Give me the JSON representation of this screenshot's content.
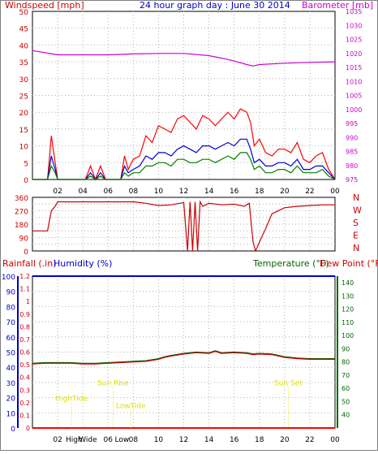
{
  "header": {
    "left_label": "Windspeed [mph]",
    "title": "24 hour graph day : June 30 2014",
    "right_label": "Barometer [mb]"
  },
  "colors": {
    "wind_gust": "#ff0000",
    "wind_avg": "#0000cc",
    "wind_speed": "#008000",
    "barometer": "#cc00cc",
    "direction": "#cc0000",
    "rain_axis": "#cc0000",
    "humidity": "#0000cc",
    "temperature": "#006400",
    "dewpoint": "#cc0000",
    "temp_axis": "#006400",
    "annotation": "#e0e000"
  },
  "x_ticks": [
    "02",
    "04",
    "06",
    "08",
    "10",
    "12",
    "14",
    "16",
    "18",
    "20",
    "22",
    "00"
  ],
  "bottom_x_ticks": [
    "02",
    "High",
    "Wide",
    "06",
    "Low",
    "08",
    "10",
    "12",
    "14",
    "16",
    "18",
    "20",
    "22",
    "00"
  ],
  "chart_data": [
    {
      "type": "line",
      "name": "wind-panel",
      "series": [
        {
          "name": "gust",
          "color": "#ff0000",
          "x": [
            0,
            1.2,
            1.5,
            1.8,
            2,
            3,
            4,
            4.2,
            4.6,
            5,
            5.4,
            5.8,
            6,
            7,
            7.3,
            7.6,
            8,
            8.5,
            9,
            9.5,
            10,
            10.5,
            11,
            11.5,
            12,
            12.5,
            13,
            13.5,
            14,
            14.5,
            15,
            15.5,
            16,
            16.5,
            17,
            17.3,
            17.6,
            18,
            18.5,
            19,
            19.5,
            20,
            20.5,
            21,
            21.5,
            22,
            22.5,
            23,
            23.5,
            24
          ],
          "y": [
            0,
            0,
            13,
            5,
            0,
            0,
            0,
            0,
            4,
            0,
            4,
            0,
            0,
            0,
            7,
            3,
            6,
            7,
            13,
            11,
            16,
            15,
            14,
            18,
            19,
            17,
            15,
            19,
            18,
            16,
            18,
            20,
            18,
            21,
            20,
            17,
            10,
            12,
            8,
            7,
            9,
            9,
            8,
            11,
            6,
            5,
            7,
            8,
            3,
            0
          ]
        },
        {
          "name": "average",
          "color": "#0000cc",
          "x": [
            0,
            1.2,
            1.5,
            1.8,
            2,
            3,
            4,
            4.2,
            4.6,
            5,
            5.4,
            5.8,
            6,
            7,
            7.3,
            7.6,
            8,
            8.5,
            9,
            9.5,
            10,
            10.5,
            11,
            11.5,
            12,
            12.5,
            13,
            13.5,
            14,
            14.5,
            15,
            15.5,
            16,
            16.5,
            17,
            17.3,
            17.6,
            18,
            18.5,
            19,
            19.5,
            20,
            20.5,
            21,
            21.5,
            22,
            22.5,
            23,
            23.5,
            24
          ],
          "y": [
            0,
            0,
            7,
            3,
            0,
            0,
            0,
            0,
            2,
            0,
            2,
            0,
            0,
            0,
            4,
            2,
            3,
            4,
            7,
            6,
            8,
            8,
            7,
            9,
            10,
            9,
            8,
            10,
            10,
            9,
            10,
            11,
            10,
            12,
            12,
            9,
            5,
            6,
            4,
            4,
            5,
            5,
            4,
            6,
            3,
            3,
            4,
            4,
            2,
            0
          ]
        },
        {
          "name": "speed",
          "color": "#008000",
          "x": [
            0,
            1.2,
            1.5,
            1.8,
            2,
            3,
            4,
            4.2,
            4.6,
            5,
            5.4,
            5.8,
            6,
            7,
            7.3,
            7.6,
            8,
            8.5,
            9,
            9.5,
            10,
            10.5,
            11,
            11.5,
            12,
            12.5,
            13,
            13.5,
            14,
            14.5,
            15,
            15.5,
            16,
            16.5,
            17,
            17.3,
            17.6,
            18,
            18.5,
            19,
            19.5,
            20,
            20.5,
            21,
            21.5,
            22,
            22.5,
            23,
            23.5,
            24
          ],
          "y": [
            0,
            0,
            4,
            2,
            0,
            0,
            0,
            0,
            1,
            0,
            1,
            0,
            0,
            0,
            2,
            1,
            2,
            2,
            4,
            4,
            5,
            5,
            4,
            6,
            6,
            5,
            5,
            6,
            6,
            5,
            6,
            7,
            6,
            8,
            8,
            6,
            3,
            4,
            2,
            2,
            3,
            3,
            2,
            4,
            2,
            2,
            2,
            3,
            1,
            0
          ]
        },
        {
          "name": "barometer",
          "color": "#cc00cc",
          "x": [
            0,
            2,
            4,
            6,
            8,
            10,
            12,
            14,
            15,
            16,
            17,
            17.5,
            18,
            20,
            22,
            24
          ],
          "y": [
            1021,
            1019.5,
            1019.5,
            1019.5,
            1019.8,
            1020,
            1020,
            1019.2,
            1018.3,
            1017.3,
            1016,
            1015.5,
            1016,
            1016.5,
            1016.8,
            1017
          ]
        }
      ],
      "x_range": [
        0,
        24
      ],
      "y_left": {
        "min": 0,
        "max": 50,
        "ticks": [
          0,
          5,
          10,
          15,
          20,
          25,
          30,
          35,
          40,
          45,
          50
        ]
      },
      "y_right": {
        "min": 975,
        "max": 1035,
        "ticks": [
          975,
          980,
          985,
          990,
          995,
          1000,
          1005,
          1010,
          1015,
          1020,
          1025,
          1030,
          1035
        ]
      },
      "grid": true
    },
    {
      "type": "line",
      "name": "direction-panel",
      "series": [
        {
          "name": "direction",
          "color": "#cc0000",
          "x": [
            0,
            0.2,
            1.2,
            1.5,
            1.8,
            2,
            4,
            6,
            8,
            9,
            10,
            11,
            12,
            12.3,
            12.5,
            12.7,
            12.9,
            13.1,
            13.3,
            13.5,
            14,
            15,
            16,
            16.8,
            17.2,
            17.5,
            17.7,
            18,
            18.5,
            19,
            20,
            21,
            22,
            23,
            24
          ],
          "y": [
            135,
            135,
            135,
            270,
            300,
            330,
            330,
            330,
            330,
            320,
            305,
            310,
            325,
            0,
            330,
            0,
            330,
            0,
            330,
            300,
            320,
            310,
            315,
            300,
            320,
            60,
            0,
            60,
            150,
            250,
            290,
            300,
            305,
            310,
            310
          ]
        }
      ],
      "x_range": [
        0,
        24
      ],
      "y_left": {
        "min": 0,
        "max": 360,
        "ticks": [
          0,
          45,
          90,
          135,
          180,
          225,
          270,
          315,
          360
        ]
      },
      "right_labels": [
        "N",
        "W",
        "S",
        "E",
        "N"
      ],
      "grid": true
    },
    {
      "type": "line",
      "name": "temp-humidity-panel",
      "axis_titles": {
        "rainfall": "Rainfall (.in)",
        "humidity": "Humidity (%)",
        "temperature": "Temperature (°F)",
        "dewpoint": "Dew Point (°F)"
      },
      "series": [
        {
          "name": "temperature",
          "color": "#006400",
          "x": [
            0,
            1,
            2,
            3,
            4,
            5,
            6,
            7,
            8,
            9,
            10,
            10.5,
            11,
            12,
            13,
            14,
            14.5,
            15,
            16,
            17,
            17.5,
            18,
            19,
            20,
            21,
            22,
            23,
            24
          ],
          "y": [
            79,
            79.5,
            79.5,
            79.5,
            79,
            79,
            79.5,
            80,
            80.5,
            81,
            82.5,
            84,
            85,
            86.5,
            87.5,
            87,
            88.5,
            87,
            87.5,
            87,
            86,
            86.5,
            86,
            84,
            83,
            82.5,
            82.5,
            82.5
          ]
        },
        {
          "name": "dewpoint",
          "color": "#cc0000",
          "x": [
            0,
            1,
            2,
            3,
            4,
            5,
            6,
            7,
            8,
            9,
            10,
            10.5,
            11,
            12,
            13,
            14,
            14.5,
            15,
            16,
            17,
            17.5,
            18,
            19,
            20,
            21,
            22,
            23,
            24
          ],
          "y": [
            79,
            79.5,
            79.5,
            79.5,
            79,
            79,
            79.5,
            80,
            80.5,
            81,
            82.5,
            84,
            85,
            86.5,
            87.5,
            87,
            88.5,
            87,
            87.5,
            87,
            86,
            86.5,
            86,
            84,
            83,
            82.5,
            82.5,
            82.5
          ]
        },
        {
          "name": "humidity",
          "color": "#0000cc",
          "x": [
            0,
            24
          ],
          "y": [
            100,
            100
          ]
        },
        {
          "name": "rainfall",
          "color": "#ff0000",
          "x": [
            0,
            24
          ],
          "y": [
            0,
            0
          ]
        }
      ],
      "x_range": [
        0,
        24
      ],
      "y_humidity": {
        "min": 0,
        "max": 100,
        "ticks": [
          0,
          10,
          20,
          30,
          40,
          50,
          60,
          70,
          80,
          90,
          100
        ]
      },
      "y_rain": {
        "min": 0,
        "max": 1.2,
        "ticks": [
          "0",
          "0.1",
          "0.2",
          "0.3",
          "0.4",
          "0.5",
          "0.6",
          "0.7",
          "0.8",
          "0.9",
          "1",
          "1.1",
          "1.2"
        ]
      },
      "y_temp": {
        "min": 30,
        "max": 145,
        "ticks": [
          40,
          50,
          60,
          70,
          80,
          90,
          100,
          110,
          120,
          130,
          140
        ]
      },
      "annotations": [
        {
          "text": "HighTide",
          "x": 3.1,
          "level": 18
        },
        {
          "text": "Sun Rise",
          "x": 6.4,
          "level": 28
        },
        {
          "text": "LowTide",
          "x": 7.8,
          "level": 13
        },
        {
          "text": "Sun Set",
          "x": 20.3,
          "level": 28
        }
      ],
      "grid": true
    }
  ]
}
